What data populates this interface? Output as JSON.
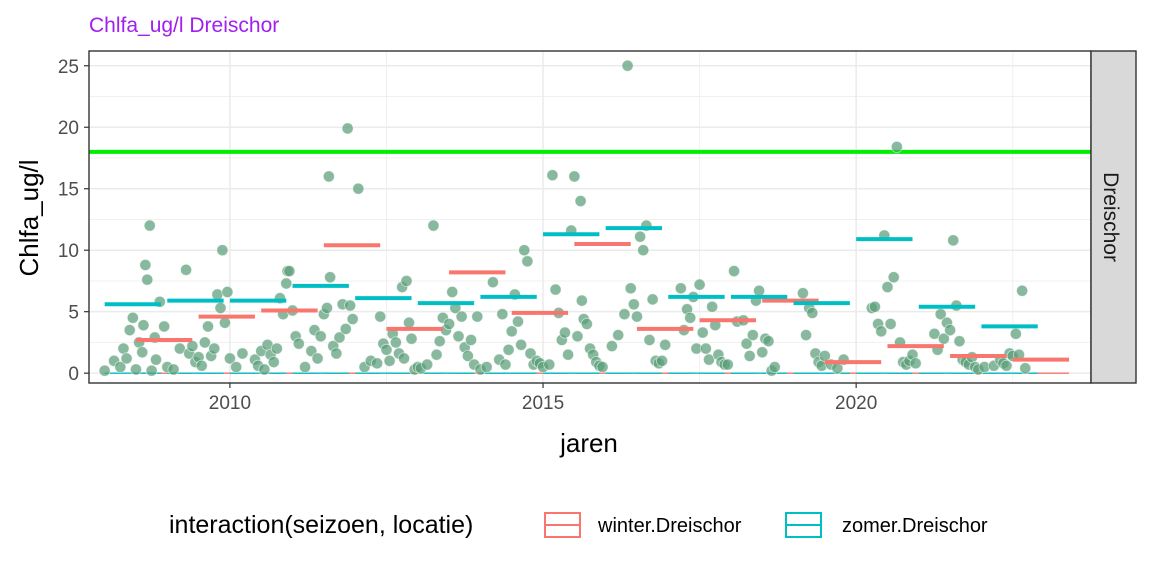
{
  "chart_data": {
    "type": "scatter",
    "title": "Chlfa_ug/l Dreischor",
    "xlabel": "jaren",
    "ylabel": "Chlfa_ug/l",
    "facet_label": "Dreischor",
    "xlim": [
      2007.75,
      2023.75
    ],
    "ylim": [
      -0.8,
      26.2
    ],
    "x_ticks": [
      2010,
      2015,
      2020
    ],
    "y_ticks": [
      0,
      5,
      10,
      15,
      20,
      25
    ],
    "grid": true,
    "legend_position": "bottom",
    "legend_title": "interaction(seizoen, locatie)",
    "colors": {
      "points": "#5a9e78",
      "threshold": "#00ee00",
      "winter": "#f8766d",
      "zomer": "#00bfc4",
      "title": "#a020f0"
    },
    "threshold": 18,
    "series": [
      {
        "name": "winter.Dreischor",
        "type": "mean_segment",
        "color": "#f8766d",
        "values": [
          {
            "x0": 2008.5,
            "x1": 2009.4,
            "y": 2.7
          },
          {
            "x0": 2009.5,
            "x1": 2010.4,
            "y": 4.6
          },
          {
            "x0": 2010.5,
            "x1": 2011.4,
            "y": 5.1
          },
          {
            "x0": 2011.5,
            "x1": 2012.4,
            "y": 10.4
          },
          {
            "x0": 2012.5,
            "x1": 2013.4,
            "y": 3.6
          },
          {
            "x0": 2013.5,
            "x1": 2014.4,
            "y": 8.2
          },
          {
            "x0": 2014.5,
            "x1": 2015.4,
            "y": 4.9
          },
          {
            "x0": 2015.5,
            "x1": 2016.4,
            "y": 10.5
          },
          {
            "x0": 2016.5,
            "x1": 2017.4,
            "y": 3.6
          },
          {
            "x0": 2017.5,
            "x1": 2018.4,
            "y": 4.3
          },
          {
            "x0": 2018.5,
            "x1": 2019.4,
            "y": 5.9
          },
          {
            "x0": 2019.5,
            "x1": 2020.4,
            "y": 0.9
          },
          {
            "x0": 2020.5,
            "x1": 2021.4,
            "y": 2.2
          },
          {
            "x0": 2021.5,
            "x1": 2022.4,
            "y": 1.4
          },
          {
            "x0": 2022.5,
            "x1": 2023.4,
            "y": 1.1
          }
        ]
      },
      {
        "name": "zomer.Dreischor",
        "type": "mean_segment",
        "color": "#00bfc4",
        "values": [
          {
            "x0": 2008.0,
            "x1": 2008.9,
            "y": 5.6
          },
          {
            "x0": 2009.0,
            "x1": 2009.9,
            "y": 5.9
          },
          {
            "x0": 2010.0,
            "x1": 2010.9,
            "y": 5.9
          },
          {
            "x0": 2011.0,
            "x1": 2011.9,
            "y": 7.1
          },
          {
            "x0": 2012.0,
            "x1": 2012.9,
            "y": 6.1
          },
          {
            "x0": 2013.0,
            "x1": 2013.9,
            "y": 5.7
          },
          {
            "x0": 2014.0,
            "x1": 2014.9,
            "y": 6.2
          },
          {
            "x0": 2015.0,
            "x1": 2015.9,
            "y": 11.3
          },
          {
            "x0": 2016.0,
            "x1": 2016.9,
            "y": 11.8
          },
          {
            "x0": 2017.0,
            "x1": 2017.9,
            "y": 6.2
          },
          {
            "x0": 2018.0,
            "x1": 2018.9,
            "y": 6.2
          },
          {
            "x0": 2019.0,
            "x1": 2019.9,
            "y": 5.7
          },
          {
            "x0": 2020.0,
            "x1": 2020.9,
            "y": 10.9
          },
          {
            "x0": 2021.0,
            "x1": 2021.9,
            "y": 5.4
          },
          {
            "x0": 2022.0,
            "x1": 2022.9,
            "y": 3.8
          }
        ]
      }
    ],
    "points": [
      [
        2008.0,
        0.2
      ],
      [
        2008.15,
        1.0
      ],
      [
        2008.25,
        0.5
      ],
      [
        2008.3,
        2.0
      ],
      [
        2008.35,
        1.2
      ],
      [
        2008.4,
        3.5
      ],
      [
        2008.45,
        4.5
      ],
      [
        2008.5,
        0.3
      ],
      [
        2008.55,
        2.5
      ],
      [
        2008.6,
        1.7
      ],
      [
        2008.62,
        3.9
      ],
      [
        2008.65,
        8.8
      ],
      [
        2008.68,
        7.6
      ],
      [
        2008.72,
        12.0
      ],
      [
        2008.75,
        0.2
      ],
      [
        2008.8,
        2.9
      ],
      [
        2008.82,
        1.1
      ],
      [
        2008.88,
        5.8
      ],
      [
        2008.95,
        3.8
      ],
      [
        2009.0,
        0.5
      ],
      [
        2009.1,
        0.3
      ],
      [
        2009.2,
        2.0
      ],
      [
        2009.3,
        8.4
      ],
      [
        2009.35,
        1.6
      ],
      [
        2009.4,
        2.2
      ],
      [
        2009.45,
        0.9
      ],
      [
        2009.5,
        1.3
      ],
      [
        2009.55,
        0.6
      ],
      [
        2009.6,
        2.5
      ],
      [
        2009.65,
        3.8
      ],
      [
        2009.7,
        1.4
      ],
      [
        2009.75,
        2.0
      ],
      [
        2009.8,
        6.4
      ],
      [
        2009.85,
        5.3
      ],
      [
        2009.88,
        10.0
      ],
      [
        2009.92,
        4.1
      ],
      [
        2009.96,
        6.6
      ],
      [
        2010.0,
        1.2
      ],
      [
        2010.1,
        0.5
      ],
      [
        2010.2,
        1.6
      ],
      [
        2010.4,
        1.1
      ],
      [
        2010.45,
        0.6
      ],
      [
        2010.5,
        1.8
      ],
      [
        2010.55,
        0.3
      ],
      [
        2010.6,
        2.3
      ],
      [
        2010.65,
        1.5
      ],
      [
        2010.7,
        0.9
      ],
      [
        2010.75,
        2.0
      ],
      [
        2010.8,
        6.1
      ],
      [
        2010.85,
        4.8
      ],
      [
        2010.9,
        7.3
      ],
      [
        2010.92,
        8.3
      ],
      [
        2010.95,
        8.3
      ],
      [
        2011.0,
        5.1
      ],
      [
        2011.05,
        3.0
      ],
      [
        2011.1,
        2.4
      ],
      [
        2011.2,
        0.5
      ],
      [
        2011.3,
        1.8
      ],
      [
        2011.35,
        3.5
      ],
      [
        2011.4,
        1.2
      ],
      [
        2011.45,
        3.0
      ],
      [
        2011.5,
        4.8
      ],
      [
        2011.55,
        5.3
      ],
      [
        2011.58,
        16.0
      ],
      [
        2011.6,
        7.8
      ],
      [
        2011.65,
        2.2
      ],
      [
        2011.7,
        1.6
      ],
      [
        2011.75,
        2.9
      ],
      [
        2011.8,
        5.6
      ],
      [
        2011.85,
        3.6
      ],
      [
        2011.88,
        19.9
      ],
      [
        2011.92,
        5.5
      ],
      [
        2011.96,
        4.4
      ],
      [
        2012.05,
        15.0
      ],
      [
        2012.15,
        0.5
      ],
      [
        2012.25,
        1.0
      ],
      [
        2012.35,
        0.8
      ],
      [
        2012.4,
        4.6
      ],
      [
        2012.45,
        2.4
      ],
      [
        2012.5,
        1.9
      ],
      [
        2012.55,
        1.0
      ],
      [
        2012.6,
        3.2
      ],
      [
        2012.65,
        2.5
      ],
      [
        2012.7,
        1.6
      ],
      [
        2012.75,
        7.0
      ],
      [
        2012.78,
        1.2
      ],
      [
        2012.82,
        7.5
      ],
      [
        2012.86,
        4.1
      ],
      [
        2012.9,
        2.8
      ],
      [
        2012.95,
        0.3
      ],
      [
        2013.0,
        0.5
      ],
      [
        2013.05,
        0.4
      ],
      [
        2013.15,
        0.7
      ],
      [
        2013.25,
        12.0
      ],
      [
        2013.3,
        1.5
      ],
      [
        2013.35,
        2.6
      ],
      [
        2013.4,
        4.5
      ],
      [
        2013.45,
        3.5
      ],
      [
        2013.5,
        4.0
      ],
      [
        2013.55,
        6.6
      ],
      [
        2013.6,
        5.3
      ],
      [
        2013.65,
        3.0
      ],
      [
        2013.7,
        4.6
      ],
      [
        2013.75,
        2.1
      ],
      [
        2013.8,
        1.4
      ],
      [
        2013.85,
        2.7
      ],
      [
        2013.9,
        0.7
      ],
      [
        2013.95,
        4.6
      ],
      [
        2014.0,
        0.3
      ],
      [
        2014.1,
        0.5
      ],
      [
        2014.2,
        7.4
      ],
      [
        2014.3,
        1.1
      ],
      [
        2014.35,
        4.8
      ],
      [
        2014.4,
        0.7
      ],
      [
        2014.45,
        1.9
      ],
      [
        2014.5,
        3.4
      ],
      [
        2014.55,
        6.4
      ],
      [
        2014.6,
        4.2
      ],
      [
        2014.65,
        2.3
      ],
      [
        2014.7,
        10.0
      ],
      [
        2014.75,
        9.1
      ],
      [
        2014.8,
        1.6
      ],
      [
        2014.85,
        0.7
      ],
      [
        2014.9,
        1.0
      ],
      [
        2014.95,
        0.8
      ],
      [
        2015.0,
        0.5
      ],
      [
        2015.1,
        0.7
      ],
      [
        2015.15,
        16.1
      ],
      [
        2015.2,
        6.8
      ],
      [
        2015.25,
        4.9
      ],
      [
        2015.3,
        2.7
      ],
      [
        2015.35,
        3.3
      ],
      [
        2015.4,
        1.5
      ],
      [
        2015.45,
        11.6
      ],
      [
        2015.5,
        16.0
      ],
      [
        2015.55,
        3.0
      ],
      [
        2015.6,
        14.0
      ],
      [
        2015.62,
        5.9
      ],
      [
        2015.65,
        4.4
      ],
      [
        2015.7,
        4.0
      ],
      [
        2015.75,
        2.0
      ],
      [
        2015.8,
        1.5
      ],
      [
        2015.85,
        0.9
      ],
      [
        2015.9,
        0.6
      ],
      [
        2015.95,
        0.5
      ],
      [
        2016.1,
        2.2
      ],
      [
        2016.2,
        3.1
      ],
      [
        2016.3,
        4.8
      ],
      [
        2016.35,
        25.0
      ],
      [
        2016.4,
        6.9
      ],
      [
        2016.45,
        5.6
      ],
      [
        2016.5,
        4.6
      ],
      [
        2016.55,
        11.1
      ],
      [
        2016.6,
        10.0
      ],
      [
        2016.65,
        12.0
      ],
      [
        2016.7,
        2.7
      ],
      [
        2016.75,
        6.0
      ],
      [
        2016.8,
        1.0
      ],
      [
        2016.85,
        0.8
      ],
      [
        2016.9,
        1.0
      ],
      [
        2016.95,
        2.3
      ],
      [
        2017.2,
        6.9
      ],
      [
        2017.25,
        3.5
      ],
      [
        2017.3,
        5.2
      ],
      [
        2017.35,
        4.5
      ],
      [
        2017.4,
        6.2
      ],
      [
        2017.45,
        2.0
      ],
      [
        2017.5,
        7.2
      ],
      [
        2017.55,
        3.3
      ],
      [
        2017.6,
        2.0
      ],
      [
        2017.65,
        1.1
      ],
      [
        2017.7,
        5.4
      ],
      [
        2017.75,
        3.9
      ],
      [
        2017.8,
        1.5
      ],
      [
        2017.85,
        0.9
      ],
      [
        2017.9,
        0.7
      ],
      [
        2017.95,
        0.7
      ],
      [
        2018.05,
        8.3
      ],
      [
        2018.1,
        4.2
      ],
      [
        2018.2,
        4.3
      ],
      [
        2018.25,
        2.4
      ],
      [
        2018.3,
        1.4
      ],
      [
        2018.35,
        3.1
      ],
      [
        2018.4,
        5.9
      ],
      [
        2018.45,
        6.7
      ],
      [
        2018.5,
        1.7
      ],
      [
        2018.55,
        2.8
      ],
      [
        2018.6,
        2.6
      ],
      [
        2018.65,
        0.2
      ],
      [
        2018.7,
        0.5
      ],
      [
        2019.15,
        6.5
      ],
      [
        2019.2,
        3.1
      ],
      [
        2019.25,
        5.3
      ],
      [
        2019.3,
        4.9
      ],
      [
        2019.35,
        1.6
      ],
      [
        2019.4,
        0.9
      ],
      [
        2019.45,
        0.6
      ],
      [
        2019.5,
        1.4
      ],
      [
        2019.6,
        0.7
      ],
      [
        2019.7,
        0.4
      ],
      [
        2019.8,
        1.1
      ],
      [
        2020.25,
        5.3
      ],
      [
        2020.3,
        5.4
      ],
      [
        2020.35,
        4.0
      ],
      [
        2020.4,
        3.4
      ],
      [
        2020.45,
        11.2
      ],
      [
        2020.5,
        7.0
      ],
      [
        2020.55,
        4.0
      ],
      [
        2020.6,
        7.8
      ],
      [
        2020.65,
        18.4
      ],
      [
        2020.7,
        2.5
      ],
      [
        2020.75,
        0.9
      ],
      [
        2020.8,
        0.7
      ],
      [
        2020.85,
        1.0
      ],
      [
        2020.9,
        1.5
      ],
      [
        2020.95,
        0.8
      ],
      [
        2021.25,
        3.2
      ],
      [
        2021.3,
        1.9
      ],
      [
        2021.35,
        4.8
      ],
      [
        2021.4,
        2.8
      ],
      [
        2021.45,
        4.1
      ],
      [
        2021.5,
        3.5
      ],
      [
        2021.55,
        10.8
      ],
      [
        2021.6,
        5.5
      ],
      [
        2021.65,
        2.6
      ],
      [
        2021.7,
        1.1
      ],
      [
        2021.75,
        0.9
      ],
      [
        2021.8,
        0.7
      ],
      [
        2021.85,
        1.3
      ],
      [
        2021.9,
        0.5
      ],
      [
        2021.95,
        0.3
      ],
      [
        2022.05,
        0.5
      ],
      [
        2022.2,
        0.6
      ],
      [
        2022.3,
        1.1
      ],
      [
        2022.35,
        0.8
      ],
      [
        2022.4,
        0.6
      ],
      [
        2022.45,
        1.6
      ],
      [
        2022.5,
        1.4
      ],
      [
        2022.55,
        3.2
      ],
      [
        2022.6,
        1.5
      ],
      [
        2022.65,
        6.7
      ],
      [
        2022.7,
        0.4
      ]
    ]
  }
}
